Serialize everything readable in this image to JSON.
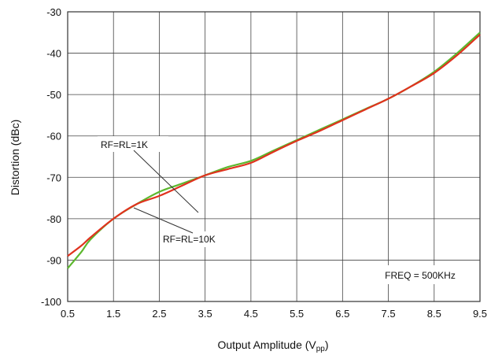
{
  "chart_data": {
    "type": "line",
    "xlabel": "Output Amplitude (V",
    "xlabel_sub": "pp",
    "xlabel_end": ")",
    "ylabel": "Distortion (dBc)",
    "xlim": [
      0.5,
      9.5
    ],
    "ylim": [
      -100,
      -30
    ],
    "xticks": [
      0.5,
      1.5,
      2.5,
      3.5,
      4.5,
      5.5,
      6.5,
      7.5,
      8.5,
      9.5
    ],
    "xtick_labels": [
      "0.5",
      "1.5",
      "2.5",
      "3.5",
      "4.5",
      "5.5",
      "6.5",
      "7.5",
      "8.5",
      "9.5"
    ],
    "yticks": [
      -100,
      -90,
      -80,
      -70,
      -60,
      -50,
      -40,
      -30
    ],
    "ytick_labels": [
      "-100",
      "-90",
      "-80",
      "-70",
      "-60",
      "-50",
      "-40",
      "-30"
    ],
    "grid": true,
    "series": [
      {
        "name": "RF=RL=1K",
        "color": "#5cb82e",
        "x": [
          0.5,
          0.8,
          1.0,
          1.5,
          2.0,
          2.5,
          3.0,
          3.5,
          4.0,
          4.5,
          5.0,
          5.5,
          6.0,
          6.5,
          7.0,
          7.5,
          8.0,
          8.5,
          9.0,
          9.5
        ],
        "y": [
          -92,
          -88,
          -85,
          -80,
          -76.5,
          -73.5,
          -71.5,
          -69.5,
          -67.5,
          -66,
          -63.5,
          -61,
          -58.5,
          -56,
          -53.5,
          -51,
          -48,
          -44.5,
          -40,
          -35
        ]
      },
      {
        "name": "RF=RL=10K",
        "color": "#e0321e",
        "x": [
          0.5,
          0.8,
          1.0,
          1.5,
          2.0,
          2.5,
          3.0,
          3.5,
          4.0,
          4.5,
          5.0,
          5.5,
          6.0,
          6.5,
          7.0,
          7.5,
          8.0,
          8.5,
          9.0,
          9.5
        ],
        "y": [
          -89,
          -86.5,
          -84.5,
          -80,
          -76.5,
          -74.5,
          -72,
          -69.5,
          -68,
          -66.5,
          -63.8,
          -61.2,
          -58.8,
          -56.2,
          -53.6,
          -51,
          -48,
          -44.8,
          -40.5,
          -35.5
        ]
      }
    ],
    "annotations": [
      {
        "text": "RF=RL=1K",
        "series": 0
      },
      {
        "text": "RF=RL=10K",
        "series": 1
      },
      {
        "text": "FREQ = 500KHz"
      }
    ]
  }
}
